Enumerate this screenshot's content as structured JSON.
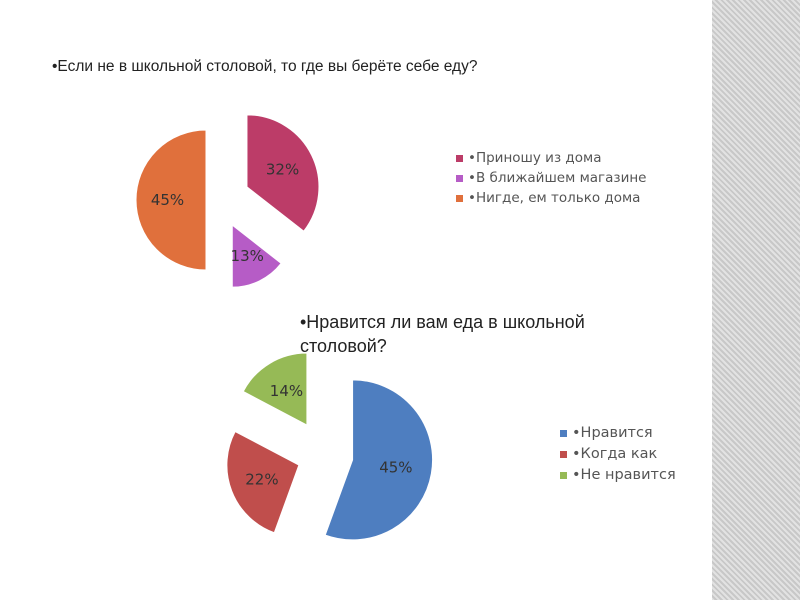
{
  "chart_data": [
    {
      "type": "pie",
      "title": "•Если не в школьной столовой, то где вы берёте себе еду?",
      "slices": [
        {
          "label": "•Приношу из дома",
          "value": 32,
          "value_label": "32%",
          "color": "#bc3c68"
        },
        {
          "label": "•В ближайшем магазине",
          "value": 13,
          "value_label": "13%",
          "color": "#b65cc6"
        },
        {
          "label": "•Нигде, ем только дома",
          "value": 45,
          "value_label": "45%",
          "color": "#e0703c"
        }
      ],
      "legend_position": "right",
      "exploded": true
    },
    {
      "type": "pie",
      "title": "•Нравится ли вам еда в школьной столовой?",
      "slices": [
        {
          "label": "•Нравится",
          "value": 45,
          "value_label": "45%",
          "color": "#4e7ec0"
        },
        {
          "label": "•Когда как",
          "value": 22,
          "value_label": "22%",
          "color": "#c04e4c"
        },
        {
          "label": "•Не нравится",
          "value": 14,
          "value_label": "14%",
          "color": "#96ba56"
        }
      ],
      "legend_position": "right",
      "exploded": true
    }
  ]
}
